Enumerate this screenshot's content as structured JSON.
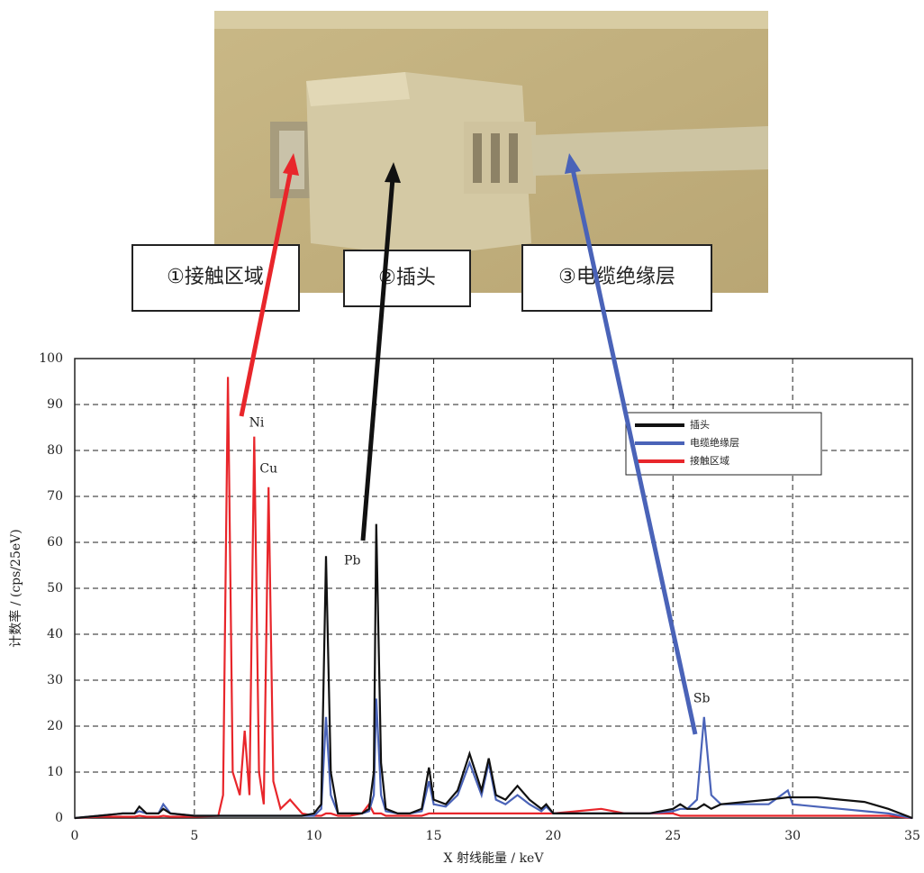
{
  "chart_data": {
    "type": "line",
    "xlabel": "X 射线能量 / keV",
    "ylabel": "计数率 / (cps/25eV)",
    "x": [
      0,
      1,
      2,
      2.5,
      2.7,
      3,
      3.5,
      3.7,
      4,
      5,
      6,
      6.2,
      6.4,
      6.6,
      6.9,
      7.1,
      7.3,
      7.5,
      7.7,
      7.9,
      8.1,
      8.3,
      8.6,
      9,
      9.5,
      10,
      10.3,
      10.5,
      10.7,
      11,
      11.5,
      12,
      12.3,
      12.5,
      12.6,
      12.8,
      13,
      13.5,
      14,
      14.5,
      14.8,
      15,
      15.5,
      16,
      16.5,
      17,
      17.3,
      17.6,
      18,
      18.5,
      19,
      19.5,
      19.7,
      20,
      21,
      22,
      23,
      24,
      25,
      25.3,
      25.6,
      26,
      26.3,
      26.6,
      27,
      28,
      29,
      29.8,
      30,
      31,
      32,
      33,
      34,
      35
    ],
    "series": [
      {
        "name": "插头",
        "color": "#111111",
        "values": [
          0,
          0.5,
          1,
          1,
          2.5,
          1,
          1,
          2,
          1,
          0.5,
          0.5,
          0.5,
          0.5,
          0.5,
          0.5,
          0.5,
          0.5,
          0.5,
          0.5,
          0.5,
          0.5,
          0.5,
          0.5,
          0.5,
          0.5,
          1,
          3,
          57,
          10,
          1,
          1,
          1,
          2,
          10,
          64,
          12,
          2,
          1,
          1,
          2,
          11,
          4,
          3,
          6,
          14,
          6,
          13,
          5,
          4,
          7,
          4,
          2,
          3,
          1,
          1,
          1,
          1,
          1,
          2,
          3,
          2,
          2,
          3,
          2,
          3,
          3.5,
          4,
          4.5,
          4.5,
          4.5,
          4,
          3.5,
          2,
          0
        ]
      },
      {
        "name": "电缆绝缘层",
        "color": "#4a63b8",
        "values": [
          0,
          0.5,
          1,
          1,
          1.5,
          1,
          1,
          3,
          1,
          0.5,
          0.5,
          0.5,
          0.5,
          0.5,
          0.5,
          0.5,
          0.5,
          0.5,
          0.5,
          0.5,
          0.5,
          0.5,
          0.5,
          0.5,
          0.5,
          0.5,
          2,
          22,
          5,
          1,
          1,
          1,
          1.5,
          5,
          26,
          5,
          1.5,
          1,
          1,
          1.5,
          8,
          3,
          2.5,
          5,
          12,
          5,
          12,
          4,
          3,
          5,
          3,
          1.5,
          2.5,
          1,
          1,
          1,
          1,
          1,
          1.5,
          2,
          2,
          4,
          22,
          5,
          3,
          3,
          3,
          6,
          3,
          2.5,
          2,
          1.5,
          1,
          0
        ]
      },
      {
        "name": "接触区域",
        "color": "#e8262b",
        "values": [
          0,
          0.3,
          0.3,
          0.3,
          0.5,
          0.3,
          0.3,
          0.5,
          0.3,
          0.3,
          0.5,
          5,
          96,
          10,
          5,
          19,
          5,
          83,
          10,
          3,
          72,
          8,
          2,
          4,
          1,
          0.5,
          0.5,
          1,
          1,
          0.5,
          0.5,
          1,
          3,
          1,
          1,
          1,
          0.5,
          0.5,
          0.5,
          0.5,
          1,
          1,
          1,
          1,
          1,
          1,
          1,
          1,
          1,
          1,
          1,
          1,
          1,
          1,
          1.5,
          2,
          1,
          1,
          1,
          0.5,
          0.5,
          0.5,
          0.5,
          0.5,
          0.5,
          0.5,
          0.5,
          0.5,
          0.5,
          0.5,
          0.5,
          0.5,
          0.5,
          0
        ]
      }
    ],
    "xlim": [
      0,
      35
    ],
    "xticks": [
      0,
      5,
      10,
      15,
      20,
      25,
      30,
      35
    ],
    "ylim": [
      0,
      100
    ],
    "yticks": [
      0,
      10,
      20,
      30,
      40,
      50,
      60,
      70,
      80,
      90,
      100
    ],
    "grid": true,
    "legend": "upper right",
    "annotations": [
      {
        "text": "Ni",
        "x": 7.6,
        "y": 86
      },
      {
        "text": "Cu",
        "x": 8.1,
        "y": 76
      },
      {
        "text": "Pb",
        "x": 11.6,
        "y": 56
      },
      {
        "text": "Sb",
        "x": 26.2,
        "y": 26
      }
    ],
    "callouts": [
      {
        "text": "①接触区域",
        "color": "#e8262b"
      },
      {
        "text": "②插头",
        "color": "#111111"
      },
      {
        "text": "③电缆绝缘层",
        "color": "#3a5fb0"
      }
    ]
  }
}
